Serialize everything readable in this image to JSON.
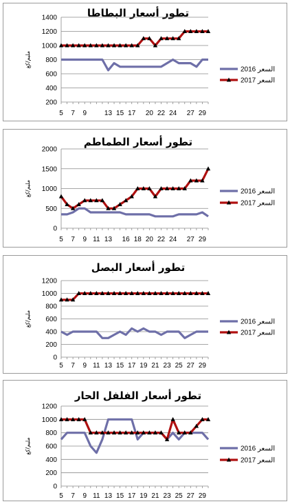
{
  "chart_data": [
    {
      "type": "line",
      "title": "تطور أسعار البطاطا",
      "ylabel": "مليم/كغ",
      "ylim": [
        200,
        1400
      ],
      "yticks": [
        200,
        400,
        600,
        800,
        1000,
        1200,
        1400
      ],
      "x": [
        5,
        6,
        7,
        8,
        9,
        10,
        11,
        12,
        13,
        14,
        15,
        16,
        17,
        18,
        19,
        20,
        21,
        22,
        23,
        24,
        25,
        26,
        27,
        28,
        29,
        30
      ],
      "xticks": [
        5,
        7,
        9,
        13,
        15,
        17,
        20,
        22,
        24,
        27,
        29
      ],
      "legend": "right",
      "series": [
        {
          "name": "السعر 2016",
          "color": "#6e6fa8",
          "marker": "none",
          "values": [
            800,
            800,
            800,
            800,
            800,
            800,
            800,
            800,
            650,
            750,
            700,
            700,
            700,
            700,
            700,
            700,
            700,
            700,
            750,
            800,
            750,
            750,
            750,
            700,
            800,
            800
          ]
        },
        {
          "name": "السعر 2017",
          "color": "#b01010",
          "marker": "triangle",
          "values": [
            1000,
            1000,
            1000,
            1000,
            1000,
            1000,
            1000,
            1000,
            1000,
            1000,
            1000,
            1000,
            1000,
            1000,
            1100,
            1100,
            1000,
            1100,
            1100,
            1100,
            1100,
            1200,
            1200,
            1200,
            1200,
            1200
          ]
        }
      ]
    },
    {
      "type": "line",
      "title": "تطور أسعار الطماطم",
      "ylabel": "مليم/كغ",
      "ylim": [
        0,
        2000
      ],
      "yticks": [
        0,
        500,
        1000,
        1500,
        2000
      ],
      "x": [
        5,
        6,
        7,
        8,
        9,
        10,
        11,
        12,
        13,
        14,
        15,
        16,
        17,
        18,
        19,
        20,
        21,
        22,
        23,
        24,
        25,
        26,
        27,
        28,
        29,
        30
      ],
      "xticks": [
        5,
        7,
        9,
        11,
        13,
        16,
        18,
        20,
        22,
        24,
        27,
        29
      ],
      "legend": "right",
      "series": [
        {
          "name": "السعر 2016",
          "color": "#6e6fa8",
          "marker": "none",
          "values": [
            350,
            350,
            400,
            500,
            500,
            400,
            400,
            400,
            400,
            400,
            400,
            350,
            350,
            350,
            350,
            350,
            300,
            300,
            300,
            300,
            350,
            350,
            350,
            350,
            400,
            300
          ]
        },
        {
          "name": "السعر 2017",
          "color": "#b01010",
          "marker": "triangle",
          "values": [
            800,
            600,
            500,
            600,
            700,
            700,
            700,
            700,
            500,
            500,
            600,
            700,
            800,
            1000,
            1000,
            1000,
            800,
            1000,
            1000,
            1000,
            1000,
            1000,
            1200,
            1200,
            1200,
            1500
          ]
        }
      ]
    },
    {
      "type": "line",
      "title": "تطور أسعار البصل",
      "ylabel": "مليم/كغ",
      "ylim": [
        0,
        1200
      ],
      "yticks": [
        0,
        200,
        400,
        600,
        800,
        1000,
        1200
      ],
      "x": [
        5,
        6,
        7,
        8,
        9,
        10,
        11,
        12,
        13,
        14,
        15,
        16,
        17,
        18,
        19,
        20,
        21,
        22,
        23,
        24,
        25,
        26,
        27,
        28,
        29,
        30
      ],
      "xticks": [
        5,
        7,
        9,
        11,
        13,
        15,
        17,
        19,
        21,
        23,
        25,
        27,
        29
      ],
      "legend": "right",
      "series": [
        {
          "name": "السعر 2016",
          "color": "#6e6fa8",
          "marker": "none",
          "values": [
            400,
            350,
            400,
            400,
            400,
            400,
            400,
            300,
            300,
            350,
            400,
            350,
            450,
            400,
            450,
            400,
            400,
            350,
            400,
            400,
            400,
            300,
            350,
            400,
            400,
            400
          ]
        },
        {
          "name": "السعر 2017",
          "color": "#b01010",
          "marker": "triangle",
          "values": [
            900,
            900,
            900,
            1000,
            1000,
            1000,
            1000,
            1000,
            1000,
            1000,
            1000,
            1000,
            1000,
            1000,
            1000,
            1000,
            1000,
            1000,
            1000,
            1000,
            1000,
            1000,
            1000,
            1000,
            1000,
            1000
          ]
        }
      ]
    },
    {
      "type": "line",
      "title": "تطور أسعار الفلفل الحار",
      "ylabel": "مليم/كغ",
      "ylim": [
        0,
        1200
      ],
      "yticks": [
        0,
        200,
        400,
        600,
        800,
        1000,
        1200
      ],
      "x": [
        5,
        6,
        7,
        8,
        9,
        10,
        11,
        12,
        13,
        14,
        15,
        16,
        17,
        18,
        19,
        20,
        21,
        22,
        23,
        24,
        25,
        26,
        27,
        28,
        29,
        30
      ],
      "xticks": [
        5,
        7,
        9,
        11,
        13,
        15,
        17,
        19,
        21,
        23,
        25,
        27,
        29
      ],
      "legend": "right",
      "series": [
        {
          "name": "السعر 2016",
          "color": "#6e6fa8",
          "marker": "none",
          "values": [
            700,
            800,
            800,
            800,
            800,
            600,
            500,
            700,
            1000,
            1000,
            1000,
            1000,
            1000,
            700,
            800,
            800,
            800,
            800,
            700,
            800,
            700,
            800,
            800,
            800,
            800,
            700
          ]
        },
        {
          "name": "السعر 2017",
          "color": "#b01010",
          "marker": "triangle",
          "values": [
            1000,
            1000,
            1000,
            1000,
            1000,
            800,
            800,
            800,
            800,
            800,
            800,
            800,
            800,
            800,
            800,
            800,
            800,
            800,
            700,
            1000,
            800,
            800,
            800,
            900,
            1000,
            1000
          ]
        }
      ]
    }
  ]
}
